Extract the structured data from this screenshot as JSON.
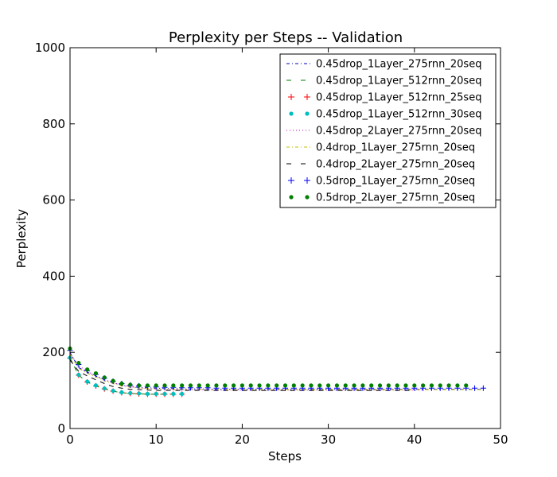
{
  "chart_data": {
    "type": "line",
    "title": "Perplexity per Steps -- Validation",
    "xlabel": "Steps",
    "ylabel": "Perplexity",
    "xlim": [
      0,
      50
    ],
    "ylim": [
      0,
      1000
    ],
    "xticks": [
      0,
      10,
      20,
      30,
      40,
      50
    ],
    "yticks": [
      0,
      200,
      400,
      600,
      800,
      1000
    ],
    "grid": false,
    "legend_position": "top-right",
    "series": [
      {
        "name": "0.45drop_1Layer_275rnn_20seq",
        "color": "#0000bf",
        "style": "dashdot",
        "x": [
          0,
          1,
          2,
          3,
          4,
          5,
          6,
          7,
          8,
          9,
          10,
          11,
          12,
          13,
          14,
          15,
          16,
          17,
          18,
          19,
          20,
          21,
          22,
          23,
          24,
          25,
          26,
          27,
          28,
          29,
          30,
          31,
          32,
          33,
          34,
          35,
          36,
          37,
          38,
          39,
          40,
          41,
          42,
          43,
          44,
          45,
          46,
          47,
          48
        ],
        "values": [
          200,
          160,
          148,
          138,
          128,
          120,
          114,
          110,
          108,
          107,
          106,
          105,
          105,
          104,
          104,
          104,
          104,
          103,
          103,
          103,
          103,
          103,
          103,
          103,
          103,
          103,
          103,
          103,
          103,
          103,
          103,
          103,
          103,
          103,
          103,
          103,
          103,
          103,
          103,
          103,
          103,
          103,
          103,
          103,
          103,
          103,
          103,
          103,
          103
        ]
      },
      {
        "name": "0.45drop_1Layer_512rnn_20seq",
        "color": "#007f00",
        "style": "dashed",
        "x": [
          0,
          1,
          2,
          3,
          4,
          5,
          6,
          7,
          8,
          9,
          10,
          11,
          12,
          13
        ],
        "values": [
          185,
          140,
          122,
          112,
          104,
          98,
          94,
          92,
          91,
          90,
          90,
          90,
          90,
          90
        ]
      },
      {
        "name": "0.45drop_1Layer_512rnn_25seq",
        "color": "#ff0000",
        "style": "plus",
        "x": [
          0,
          1,
          2,
          3,
          4,
          5,
          6,
          7,
          8,
          9,
          10,
          11,
          12,
          13
        ],
        "values": [
          185,
          140,
          122,
          112,
          104,
          98,
          94,
          92,
          91,
          90,
          90,
          90,
          90,
          90
        ]
      },
      {
        "name": "0.45drop_1Layer_512rnn_30seq",
        "color": "#00bfbf",
        "style": "circle",
        "x": [
          0,
          1,
          2,
          3,
          4,
          5,
          6,
          7,
          8,
          9,
          10,
          11,
          12,
          13
        ],
        "values": [
          186,
          141,
          123,
          113,
          105,
          99,
          95,
          93,
          92,
          91,
          91,
          91,
          91,
          91
        ]
      },
      {
        "name": "0.45drop_2Layer_275rnn_20seq",
        "color": "#bf00bf",
        "style": "dotted",
        "x": [
          0,
          1,
          2,
          3,
          4,
          5,
          6,
          7,
          8,
          9,
          10,
          11,
          12,
          13,
          14,
          15,
          16,
          17,
          18,
          19,
          20,
          21,
          22,
          23,
          24,
          25,
          26,
          27,
          28,
          29,
          30,
          31,
          32,
          33,
          34,
          35,
          36,
          37,
          38,
          39,
          40,
          41
        ],
        "values": [
          198,
          165,
          150,
          138,
          128,
          120,
          114,
          110,
          107,
          105,
          104,
          103,
          103,
          102,
          102,
          102,
          102,
          101,
          101,
          101,
          101,
          101,
          101,
          101,
          101,
          101,
          101,
          101,
          101,
          101,
          101,
          101,
          101,
          101,
          101,
          101,
          101,
          101,
          101,
          101,
          101,
          101
        ]
      },
      {
        "name": "0.4drop_1Layer_275rnn_20seq",
        "color": "#bfbf00",
        "style": "dashdot",
        "x": [
          0,
          1,
          2,
          3,
          4,
          5,
          6,
          7,
          8,
          9,
          10,
          11,
          12,
          13,
          14,
          15,
          16,
          17,
          18,
          19,
          20,
          21,
          22,
          23,
          24,
          25,
          26,
          27,
          28,
          29,
          30,
          31,
          32,
          33,
          34,
          35,
          36,
          37,
          38,
          39,
          40,
          41,
          42,
          43,
          44,
          45,
          46,
          47,
          48
        ],
        "values": [
          195,
          158,
          145,
          135,
          125,
          118,
          112,
          108,
          106,
          105,
          104,
          104,
          103,
          103,
          103,
          103,
          102,
          102,
          102,
          102,
          102,
          102,
          102,
          102,
          102,
          102,
          102,
          102,
          102,
          102,
          102,
          102,
          102,
          102,
          102,
          102,
          102,
          102,
          102,
          102,
          102,
          102,
          102,
          102,
          102,
          102,
          102,
          102,
          102
        ]
      },
      {
        "name": "0.4drop_2Layer_275rnn_20seq",
        "color": "#000000",
        "style": "dashed",
        "x": [
          0,
          1,
          2,
          3,
          4,
          5,
          6,
          7,
          8,
          9,
          10,
          11,
          12,
          13,
          14,
          15,
          16,
          17,
          18,
          19,
          20,
          21,
          22,
          23,
          24,
          25,
          26,
          27,
          28,
          29,
          30,
          31,
          32,
          33,
          34,
          35,
          36,
          37,
          38,
          39,
          40
        ],
        "values": [
          180,
          150,
          138,
          128,
          118,
          110,
          106,
          103,
          102,
          101,
          100,
          100,
          100,
          100,
          100,
          100,
          100,
          100,
          100,
          100,
          100,
          100,
          100,
          100,
          100,
          100,
          100,
          100,
          100,
          100,
          100,
          100,
          100,
          100,
          100,
          100,
          100,
          100,
          100,
          100,
          100
        ]
      },
      {
        "name": "0.5drop_1Layer_275rnn_20seq",
        "color": "#0000ff",
        "style": "plus",
        "x": [
          0,
          1,
          2,
          3,
          4,
          5,
          6,
          7,
          8,
          9,
          10,
          11,
          12,
          13,
          14,
          15,
          16,
          17,
          18,
          19,
          20,
          21,
          22,
          23,
          24,
          25,
          26,
          27,
          28,
          29,
          30,
          31,
          32,
          33,
          34,
          35,
          36,
          37,
          38,
          39,
          40,
          41,
          42,
          43,
          44,
          45,
          46,
          47,
          48
        ],
        "values": [
          205,
          168,
          152,
          142,
          132,
          124,
          118,
          114,
          112,
          110,
          109,
          108,
          108,
          107,
          107,
          107,
          107,
          106,
          106,
          106,
          106,
          106,
          106,
          106,
          106,
          106,
          106,
          106,
          106,
          106,
          106,
          106,
          106,
          106,
          106,
          106,
          106,
          106,
          106,
          106,
          106,
          106,
          106,
          106,
          106,
          106,
          106,
          106,
          106
        ]
      },
      {
        "name": "0.5drop_2Layer_275rnn_20seq",
        "color": "#007f00",
        "style": "circle",
        "x": [
          0,
          1,
          2,
          3,
          4,
          5,
          6,
          7,
          8,
          9,
          10,
          11,
          12,
          13,
          14,
          15,
          16,
          17,
          18,
          19,
          20,
          21,
          22,
          23,
          24,
          25,
          26,
          27,
          28,
          29,
          30,
          31,
          32,
          33,
          34,
          35,
          36,
          37,
          38,
          39,
          40,
          41,
          42,
          43,
          44,
          45,
          46
        ],
        "values": [
          210,
          172,
          155,
          145,
          134,
          125,
          118,
          115,
          113,
          113,
          113,
          113,
          113,
          113,
          113,
          113,
          113,
          113,
          113,
          113,
          113,
          113,
          113,
          113,
          113,
          113,
          113,
          113,
          113,
          113,
          113,
          113,
          113,
          113,
          113,
          113,
          113,
          113,
          113,
          113,
          113,
          113,
          113,
          113,
          113,
          113,
          113
        ]
      }
    ]
  }
}
